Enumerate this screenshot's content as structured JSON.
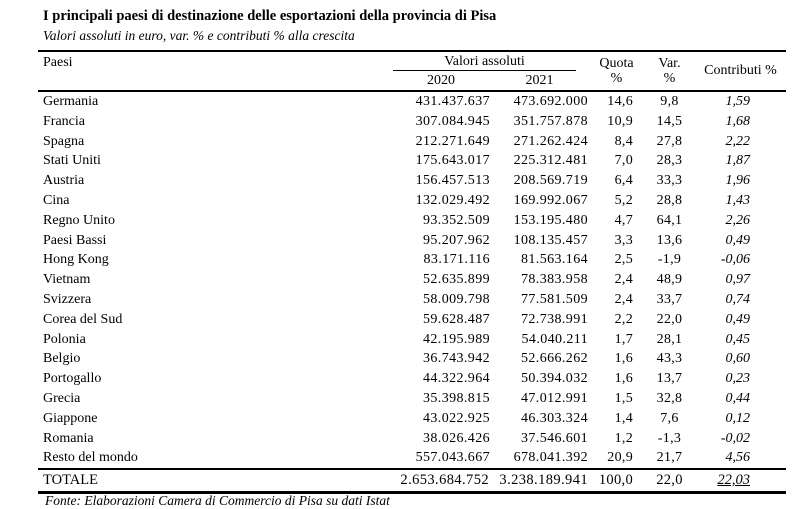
{
  "title": "I principali paesi di destinazione delle esportazioni della provincia di Pisa",
  "subtitle": "Valori assoluti in euro, var. % e contributi % alla crescita",
  "source": "Fonte: Elaborazioni Camera di Commercio di Pisa su dati Istat",
  "table": {
    "headers": {
      "paesi": "Paesi",
      "valori_assoluti": "Valori assoluti",
      "year_2020": "2020",
      "year_2021": "2021",
      "quota_line1": "Quota",
      "quota_line2": "%",
      "var_line1": "Var.",
      "var_line2": "%",
      "contributi": "Contributi %"
    },
    "rows": [
      {
        "paese": "Germania",
        "v2020": "431.437.637",
        "v2021": "473.692.000",
        "quota": "14,6",
        "var": "9,8",
        "contributi": "1,59"
      },
      {
        "paese": "Francia",
        "v2020": "307.084.945",
        "v2021": "351.757.878",
        "quota": "10,9",
        "var": "14,5",
        "contributi": "1,68"
      },
      {
        "paese": "Spagna",
        "v2020": "212.271.649",
        "v2021": "271.262.424",
        "quota": "8,4",
        "var": "27,8",
        "contributi": "2,22"
      },
      {
        "paese": "Stati Uniti",
        "v2020": "175.643.017",
        "v2021": "225.312.481",
        "quota": "7,0",
        "var": "28,3",
        "contributi": "1,87"
      },
      {
        "paese": "Austria",
        "v2020": "156.457.513",
        "v2021": "208.569.719",
        "quota": "6,4",
        "var": "33,3",
        "contributi": "1,96"
      },
      {
        "paese": "Cina",
        "v2020": "132.029.492",
        "v2021": "169.992.067",
        "quota": "5,2",
        "var": "28,8",
        "contributi": "1,43"
      },
      {
        "paese": "Regno Unito",
        "v2020": "93.352.509",
        "v2021": "153.195.480",
        "quota": "4,7",
        "var": "64,1",
        "contributi": "2,26"
      },
      {
        "paese": "Paesi Bassi",
        "v2020": "95.207.962",
        "v2021": "108.135.457",
        "quota": "3,3",
        "var": "13,6",
        "contributi": "0,49"
      },
      {
        "paese": "Hong Kong",
        "v2020": "83.171.116",
        "v2021": "81.563.164",
        "quota": "2,5",
        "var": "-1,9",
        "contributi": "-0,06"
      },
      {
        "paese": "Vietnam",
        "v2020": "52.635.899",
        "v2021": "78.383.958",
        "quota": "2,4",
        "var": "48,9",
        "contributi": "0,97"
      },
      {
        "paese": "Svizzera",
        "v2020": "58.009.798",
        "v2021": "77.581.509",
        "quota": "2,4",
        "var": "33,7",
        "contributi": "0,74"
      },
      {
        "paese": "Corea del Sud",
        "v2020": "59.628.487",
        "v2021": "72.738.991",
        "quota": "2,2",
        "var": "22,0",
        "contributi": "0,49"
      },
      {
        "paese": "Polonia",
        "v2020": "42.195.989",
        "v2021": "54.040.211",
        "quota": "1,7",
        "var": "28,1",
        "contributi": "0,45"
      },
      {
        "paese": "Belgio",
        "v2020": "36.743.942",
        "v2021": "52.666.262",
        "quota": "1,6",
        "var": "43,3",
        "contributi": "0,60"
      },
      {
        "paese": "Portogallo",
        "v2020": "44.322.964",
        "v2021": "50.394.032",
        "quota": "1,6",
        "var": "13,7",
        "contributi": "0,23"
      },
      {
        "paese": "Grecia",
        "v2020": "35.398.815",
        "v2021": "47.012.991",
        "quota": "1,5",
        "var": "32,8",
        "contributi": "0,44"
      },
      {
        "paese": "Giappone",
        "v2020": "43.022.925",
        "v2021": "46.303.324",
        "quota": "1,4",
        "var": "7,6",
        "contributi": "0,12"
      },
      {
        "paese": "Romania",
        "v2020": "38.026.426",
        "v2021": "37.546.601",
        "quota": "1,2",
        "var": "-1,3",
        "contributi": "-0,02"
      },
      {
        "paese": "Resto del mondo",
        "v2020": "557.043.667",
        "v2021": "678.041.392",
        "quota": "20,9",
        "var": "21,7",
        "contributi": "4,56"
      }
    ],
    "total": {
      "paese": "TOTALE",
      "v2020": "2.653.684.752",
      "v2021": "3.238.189.941",
      "quota": "100,0",
      "var": "22,0",
      "contributi": "22,03"
    }
  }
}
